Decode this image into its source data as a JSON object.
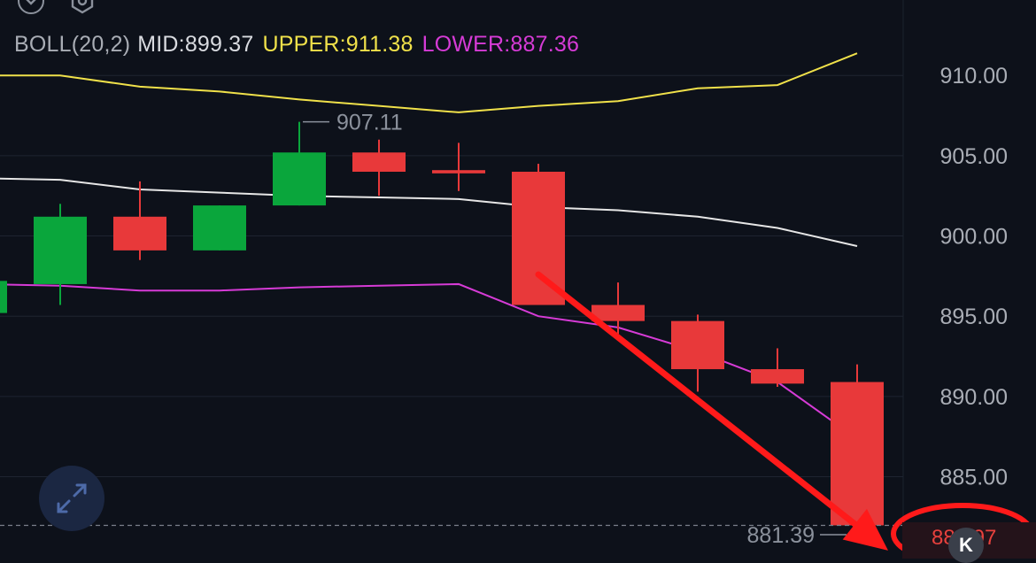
{
  "legend": {
    "indicator": "BOLL(20,2)",
    "mid": "MID:899.37",
    "upper": "UPPER:911.38",
    "lower": "LOWER:887.36"
  },
  "colors": {
    "background": "#0d111a",
    "up": "#0aa63c",
    "down": "#e8393a",
    "mid_line": "#e6e6e6",
    "upper_line": "#f0e14a",
    "lower_line": "#d63bd6",
    "axis_text": "#a9adb5",
    "annotation": "#ff1a1a"
  },
  "icons": [
    "chevron-down-icon",
    "settings-icon",
    "expand-icon",
    "k-line-icon"
  ],
  "chart_data": {
    "type": "candlestick",
    "title": "",
    "xlabel": "",
    "ylabel": "",
    "ylim": [
      879.9,
      914.7
    ],
    "y_ticks": [
      "910.00",
      "905.00",
      "900.00",
      "895.00",
      "890.00",
      "885.00"
    ],
    "y_tick_values": [
      910,
      905,
      900,
      895,
      890,
      885
    ],
    "grid": true,
    "candles": [
      {
        "open": 895.2,
        "close": 897.2,
        "high": 897.5,
        "low": 895.0,
        "dir": "up"
      },
      {
        "open": 897.0,
        "close": 901.2,
        "high": 902.0,
        "low": 895.7,
        "dir": "up"
      },
      {
        "open": 901.2,
        "close": 899.1,
        "high": 903.4,
        "low": 898.5,
        "dir": "down"
      },
      {
        "open": 899.1,
        "close": 901.9,
        "high": 901.9,
        "low": 899.1,
        "dir": "up"
      },
      {
        "open": 901.9,
        "close": 905.2,
        "high": 907.11,
        "low": 901.9,
        "dir": "up"
      },
      {
        "open": 905.2,
        "close": 904.0,
        "high": 906.0,
        "low": 902.5,
        "dir": "down"
      },
      {
        "open": 904.1,
        "close": 903.9,
        "high": 905.8,
        "low": 902.8,
        "dir": "down"
      },
      {
        "open": 904.0,
        "close": 895.7,
        "high": 904.5,
        "low": 895.7,
        "dir": "down"
      },
      {
        "open": 895.7,
        "close": 894.7,
        "high": 897.1,
        "low": 893.9,
        "dir": "down"
      },
      {
        "open": 894.7,
        "close": 891.7,
        "high": 895.1,
        "low": 890.3,
        "dir": "down"
      },
      {
        "open": 891.7,
        "close": 890.8,
        "high": 893.0,
        "low": 890.6,
        "dir": "down"
      },
      {
        "open": 890.9,
        "close": 881.97,
        "high": 892.0,
        "low": 881.39,
        "dir": "down"
      }
    ],
    "upper_band": [
      910.0,
      910.0,
      909.3,
      909.0,
      908.5,
      908.1,
      907.7,
      908.1,
      908.4,
      909.2,
      909.4,
      911.38
    ],
    "mid_band": [
      903.6,
      903.5,
      902.9,
      902.7,
      902.5,
      902.4,
      902.3,
      901.8,
      901.6,
      901.2,
      900.5,
      899.37
    ],
    "lower_band": [
      897.0,
      896.9,
      896.6,
      896.6,
      896.8,
      896.9,
      897.0,
      895.0,
      894.3,
      892.8,
      890.9,
      887.36
    ],
    "annotations": {
      "high_label": "907.11",
      "low_label": "881.39",
      "current_price": "881.97",
      "current_price_value": 881.97,
      "arrow_from": {
        "index": 7.0,
        "value": 897.6
      },
      "arrow_to": {
        "index": 11.5,
        "value": 880.4
      }
    }
  }
}
